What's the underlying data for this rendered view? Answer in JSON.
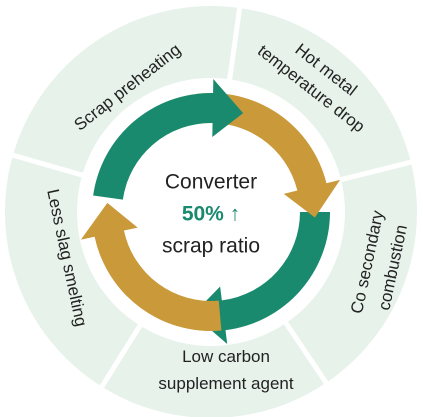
{
  "center": {
    "line1": "Converter",
    "highlight": "50% ↑",
    "line2": "scrap ratio"
  },
  "segments": [
    {
      "lines": [
        "Scrap preheating"
      ]
    },
    {
      "lines": [
        "Hot metal",
        "temperature drop"
      ]
    },
    {
      "lines": [
        "Co secondary",
        "combustion"
      ]
    },
    {
      "lines": [
        "Low carbon",
        "supplement agent"
      ]
    },
    {
      "lines": [
        "Less slag smelting"
      ]
    }
  ]
}
